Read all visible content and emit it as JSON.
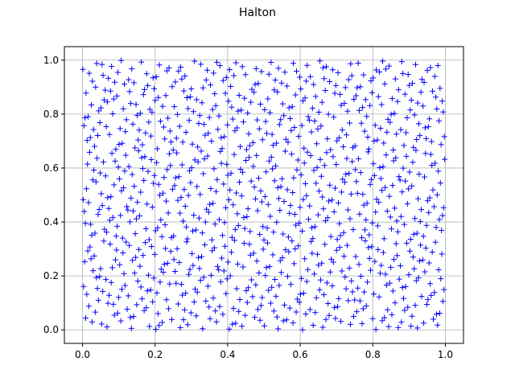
{
  "chart_data": {
    "type": "scatter",
    "title": "Halton",
    "xlabel": "",
    "ylabel": "",
    "xlim": [
      -0.05,
      1.05
    ],
    "ylim": [
      -0.05,
      1.05
    ],
    "xticks": [
      "0.0",
      "0.2",
      "0.4",
      "0.6",
      "0.8",
      "1.0"
    ],
    "yticks": [
      "0.0",
      "0.2",
      "0.4",
      "0.6",
      "0.8",
      "1.0"
    ],
    "grid": true,
    "marker": "+",
    "series": [
      {
        "color": "#0000ff",
        "sequence": "halton",
        "bases": [
          2,
          3
        ],
        "count": 1000
      }
    ]
  }
}
